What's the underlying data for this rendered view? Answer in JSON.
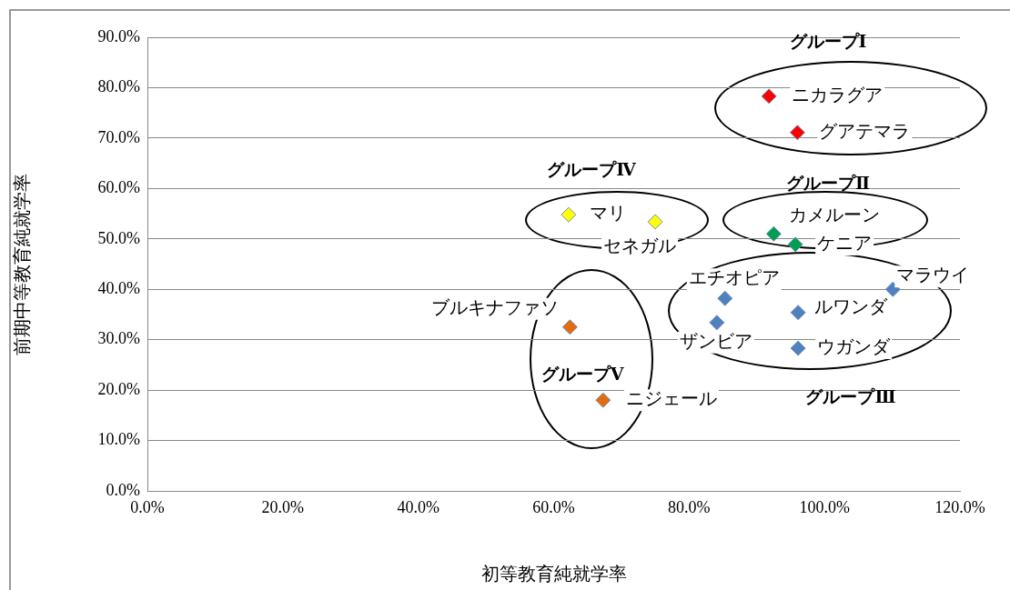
{
  "chart_data": {
    "type": "scatter",
    "xlabel": "初等教育純就学率",
    "ylabel": "前期中等教育純就学率",
    "xlim": [
      0,
      120
    ],
    "xticks": [
      {
        "value": 0,
        "label": "0.0%"
      },
      {
        "value": 20,
        "label": "20.0%"
      },
      {
        "value": 40,
        "label": "40.0%"
      },
      {
        "value": 60,
        "label": "60.0%"
      },
      {
        "value": 80,
        "label": "80.0%"
      },
      {
        "value": 100,
        "label": "100.0%"
      },
      {
        "value": 120,
        "label": "120.0%"
      }
    ],
    "ylim": [
      0,
      90
    ],
    "yticks": [
      {
        "value": 0,
        "label": "0.0%"
      },
      {
        "value": 10,
        "label": "10.0%"
      },
      {
        "value": 20,
        "label": "20.0%"
      },
      {
        "value": 30,
        "label": "30.0%"
      },
      {
        "value": 40,
        "label": "40.0%"
      },
      {
        "value": 50,
        "label": "50.0%"
      },
      {
        "value": 60,
        "label": "60.0%"
      },
      {
        "value": 70,
        "label": "70.0%"
      },
      {
        "value": 80,
        "label": "80.0%"
      },
      {
        "value": 90,
        "label": "90.0%"
      }
    ],
    "grid": "y",
    "legend": false,
    "marker": "diamond",
    "series": [
      {
        "color": "#ff0000",
        "x": [
          91.8,
          96.0
        ],
        "values": [
          78.3,
          71.1
        ]
      },
      {
        "color": "#00a050",
        "x": [
          92.5,
          95.7
        ],
        "values": [
          51.0,
          48.9
        ]
      },
      {
        "color": "#4f81bd",
        "x": [
          85.3,
          110.1,
          96.1,
          84.1,
          96.1
        ],
        "values": [
          38.2,
          40.0,
          35.4,
          33.4,
          28.3
        ]
      },
      {
        "color": "#ffff00",
        "x": [
          62.2,
          75.0
        ],
        "values": [
          54.8,
          53.4
        ]
      },
      {
        "color": "#e46c0a",
        "x": [
          62.4,
          67.3
        ],
        "values": [
          32.5,
          18.0
        ]
      }
    ],
    "annotations": [
      {
        "text": "ニカラグア",
        "x": 91.8,
        "y": 78.3
      },
      {
        "text": "グアテマラ",
        "x": 96.0,
        "y": 71.1
      },
      {
        "text": "マリ",
        "x": 62.2,
        "y": 54.8
      },
      {
        "text": "セネガル",
        "x": 75.0,
        "y": 53.4
      },
      {
        "text": "カメルーン",
        "x": 92.5,
        "y": 51.0
      },
      {
        "text": "ケニア",
        "x": 95.7,
        "y": 48.9
      },
      {
        "text": "エチオピア",
        "x": 85.3,
        "y": 38.2
      },
      {
        "text": "マラウイ",
        "x": 110.1,
        "y": 40.0
      },
      {
        "text": "ルワンダ",
        "x": 96.1,
        "y": 35.4
      },
      {
        "text": "ザンビア",
        "x": 84.1,
        "y": 33.4
      },
      {
        "text": "ウガンダ",
        "x": 96.1,
        "y": 28.3
      },
      {
        "text": "ブルキナファソ",
        "x": 62.4,
        "y": 32.5
      },
      {
        "text": "ニジェール",
        "x": 67.3,
        "y": 18.0
      },
      "グループⅠ",
      "グループⅡ",
      "グループⅢ",
      "グループⅣ",
      "グループⅤ"
    ]
  }
}
